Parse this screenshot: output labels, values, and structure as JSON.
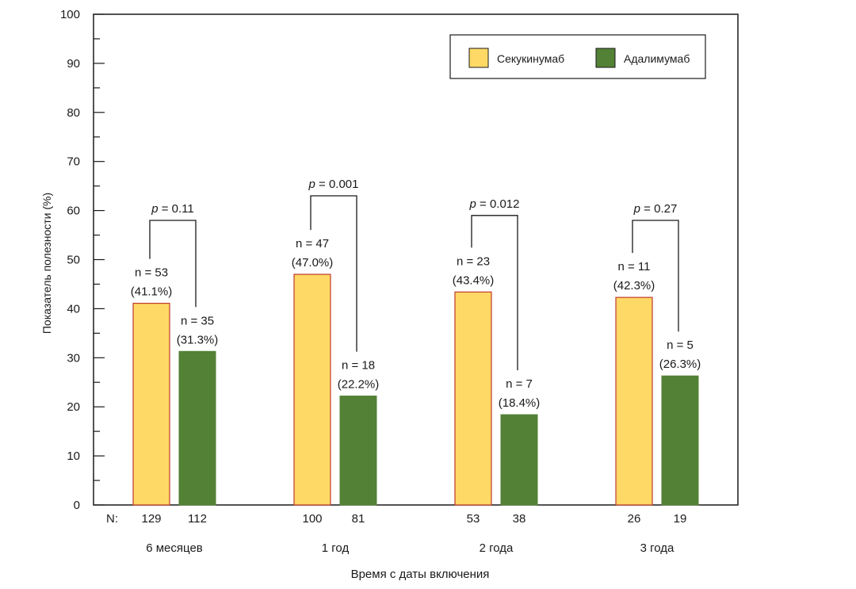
{
  "chart_data": {
    "type": "bar",
    "title": "",
    "xlabel": "Время с даты включения",
    "ylabel": "Показатель полезности (%)",
    "ylim": [
      0,
      100
    ],
    "y_major_ticks": [
      0,
      10,
      20,
      30,
      40,
      50,
      60,
      70,
      80,
      90,
      100
    ],
    "y_minor_step": 5,
    "grid": false,
    "legend_position": "top-right",
    "categories": [
      "6 месяцев",
      "1 год",
      "2 года",
      "3 года"
    ],
    "n_row_label": "N:",
    "series": [
      {
        "name": "Секукинумаб",
        "color": "#FFD966",
        "edge_color": "#C0392B",
        "values": [
          41.1,
          47.0,
          43.4,
          42.3
        ],
        "labels_n": [
          "n = 53",
          "n = 47",
          "n = 23",
          "n = 11"
        ],
        "labels_pct": [
          "(41.1%)",
          "(47.0%)",
          "(43.4%)",
          "(42.3%)"
        ],
        "N": [
          "129",
          "100",
          "53",
          "26"
        ]
      },
      {
        "name": "Адалимумаб",
        "color": "#538135",
        "edge_color": "#538135",
        "values": [
          31.3,
          22.2,
          18.4,
          26.3
        ],
        "labels_n": [
          "n = 35",
          "n = 18",
          "n = 7",
          "n = 5"
        ],
        "labels_pct": [
          "(31.3%)",
          "(22.2%)",
          "(18.4%)",
          "(26.3%)"
        ],
        "N": [
          "112",
          "81",
          "38",
          "19"
        ]
      }
    ],
    "comparisons": [
      {
        "p_symbol": "p",
        "p_value": " = 0.11",
        "bracket_level": 58
      },
      {
        "p_symbol": "p",
        "p_value": " = 0.001",
        "bracket_level": 63
      },
      {
        "p_symbol": "p",
        "p_value": " = 0.012",
        "bracket_level": 59
      },
      {
        "p_symbol": "p",
        "p_value": " = 0.27",
        "bracket_level": 58
      }
    ]
  }
}
